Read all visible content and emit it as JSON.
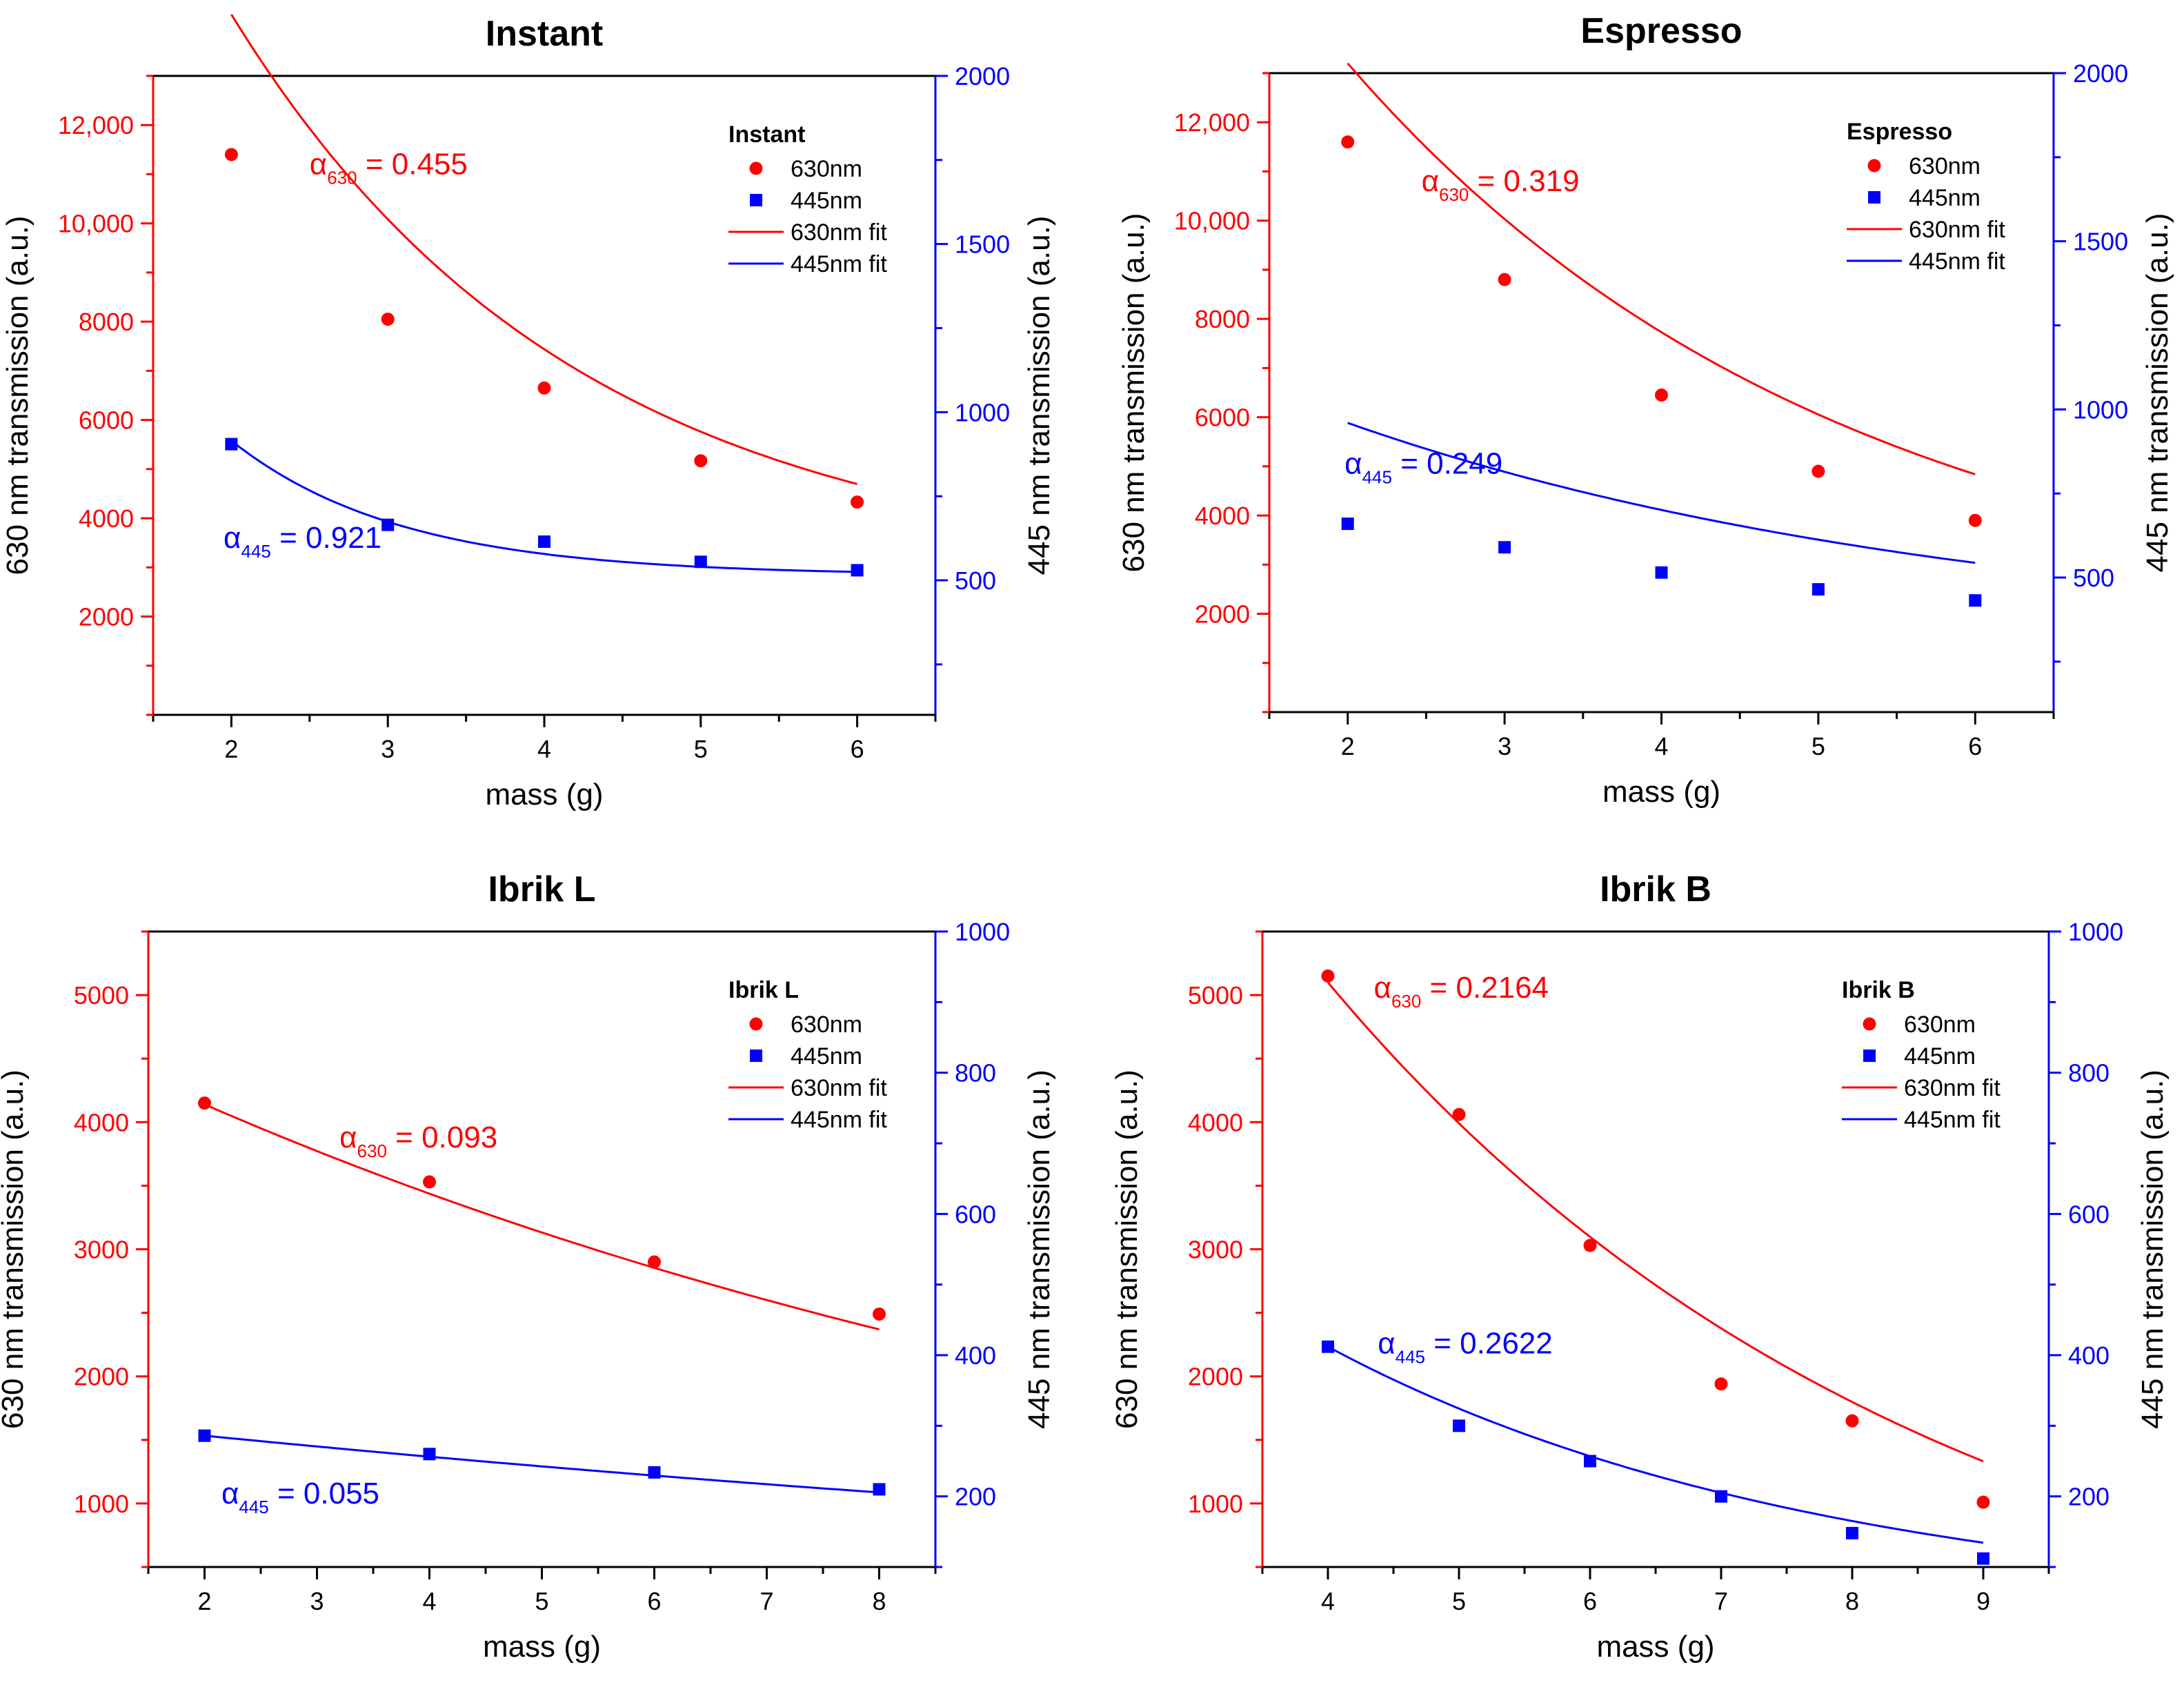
{
  "chart_data": [
    {
      "type": "scatter",
      "title": "Instant",
      "xlabel": "mass (g)",
      "ylabel_left": "630 nm transmission (a.u.)",
      "ylabel_right": "445 nm transmission (a.u.)",
      "xlim": [
        1.5,
        6.5
      ],
      "ylim_left": [
        0,
        13000
      ],
      "ylim_right": [
        100,
        2000
      ],
      "xticks": [
        2,
        3,
        4,
        5,
        6
      ],
      "xtick_labels": [
        "2",
        "3",
        "4",
        "5",
        "6"
      ],
      "yticks_left": [
        2000,
        4000,
        6000,
        8000,
        10000,
        12000
      ],
      "ytick_labels_left": [
        "2000",
        "4000",
        "6000",
        "8000",
        "10,000",
        "12,000"
      ],
      "yticks_right": [
        500,
        1000,
        1500,
        2000
      ],
      "ytick_labels_right": [
        "500",
        "1000",
        "1500",
        "2000"
      ],
      "legend": {
        "title": "Instant",
        "position": "top-right",
        "entries": [
          "630nm",
          "445nm",
          "630nm fit",
          "445nm fit"
        ]
      },
      "series": [
        {
          "name": "630nm",
          "axis": "left",
          "color": "#ff0000",
          "marker": "circle",
          "x": [
            2,
            3,
            4,
            5,
            6
          ],
          "y": [
            11400,
            8050,
            6650,
            5170,
            4330
          ]
        },
        {
          "name": "445nm",
          "axis": "right",
          "color": "#0000ff",
          "marker": "square",
          "x": [
            2,
            3,
            4,
            5,
            6
          ],
          "y": [
            905,
            665,
            615,
            555,
            530
          ]
        }
      ],
      "fits": [
        {
          "name": "630nm fit",
          "axis": "left",
          "color": "#ff0000",
          "x_range": [
            2,
            6
          ],
          "A": 11400,
          "alpha": 0.455,
          "C": 2850
        },
        {
          "name": "445nm fit",
          "axis": "right",
          "color": "#0000ff",
          "x_range": [
            2,
            6
          ],
          "A": 400,
          "alpha": 0.921,
          "C": 515
        }
      ],
      "annotations": [
        {
          "greek": "α",
          "sub": "630",
          "text": " = 0.455",
          "color": "#ff0000",
          "x": 2.5,
          "y": 11000,
          "axis": "left"
        },
        {
          "greek": "α",
          "sub": "445",
          "text": " = 0.921",
          "color": "#0000ff",
          "x": 1.95,
          "y": 3400,
          "axis": "left"
        }
      ]
    },
    {
      "type": "scatter",
      "title": "Espresso",
      "xlabel": "mass (g)",
      "ylabel_left": "630 nm transmission (a.u.)",
      "ylabel_right": "445 nm transmission (a.u.)",
      "xlim": [
        1.5,
        6.5
      ],
      "ylim_left": [
        0,
        13000
      ],
      "ylim_right": [
        100,
        2000
      ],
      "xticks": [
        2,
        3,
        4,
        5,
        6
      ],
      "xtick_labels": [
        "2",
        "3",
        "4",
        "5",
        "6"
      ],
      "yticks_left": [
        2000,
        4000,
        6000,
        8000,
        10000,
        12000
      ],
      "ytick_labels_left": [
        "2000",
        "4000",
        "6000",
        "8000",
        "10,000",
        "12,000"
      ],
      "yticks_right": [
        500,
        1000,
        1500,
        2000
      ],
      "ytick_labels_right": [
        "500",
        "1000",
        "1500",
        "2000"
      ],
      "legend": {
        "title": "Espresso",
        "position": "top-right",
        "entries": [
          "630nm",
          "445nm",
          "630nm fit",
          "445nm fit"
        ]
      },
      "series": [
        {
          "name": "630nm",
          "axis": "left",
          "color": "#ff0000",
          "marker": "circle",
          "x": [
            2,
            3,
            4,
            5,
            6
          ],
          "y": [
            11600,
            8800,
            6450,
            4900,
            3900
          ]
        },
        {
          "name": "445nm",
          "axis": "right",
          "color": "#0000ff",
          "marker": "square",
          "x": [
            2,
            3,
            4,
            5,
            6
          ],
          "y": [
            660,
            590,
            515,
            465,
            432
          ]
        }
      ],
      "fits": [
        {
          "name": "630nm fit",
          "axis": "left",
          "color": "#ff0000",
          "x_range": [
            2,
            6
          ],
          "A": 11600,
          "alpha": 0.319,
          "C": 1600
        },
        {
          "name": "445nm fit",
          "axis": "right",
          "color": "#0000ff",
          "x_range": [
            2,
            6
          ],
          "A": 660,
          "alpha": 0.249,
          "C": 300
        }
      ],
      "annotations": [
        {
          "greek": "α",
          "sub": "630",
          "text": " = 0.319",
          "color": "#ff0000",
          "x": 2.47,
          "y": 10600,
          "axis": "left"
        },
        {
          "greek": "α",
          "sub": "445",
          "text": " = 0.249",
          "color": "#0000ff",
          "x": 1.98,
          "y": 4850,
          "axis": "left"
        }
      ]
    },
    {
      "type": "scatter",
      "title": "Ibrik L",
      "xlabel": "mass (g)",
      "ylabel_left": "630 nm transmission (a.u.)",
      "ylabel_right": "445 nm transmission (a.u.)",
      "xlim": [
        1.5,
        8.5
      ],
      "ylim_left": [
        500,
        5500
      ],
      "ylim_right": [
        100,
        1000
      ],
      "xticks": [
        2,
        3,
        4,
        5,
        6,
        7,
        8
      ],
      "xtick_labels": [
        "2",
        "3",
        "4",
        "5",
        "6",
        "7",
        "8"
      ],
      "yticks_left": [
        1000,
        2000,
        3000,
        4000,
        5000
      ],
      "ytick_labels_left": [
        "1000",
        "2000",
        "3000",
        "4000",
        "5000"
      ],
      "yticks_right": [
        200,
        400,
        600,
        800,
        1000
      ],
      "ytick_labels_right": [
        "200",
        "400",
        "600",
        "800",
        "1000"
      ],
      "legend": {
        "title": "Ibrik L",
        "position": "top-right",
        "entries": [
          "630nm",
          "445nm",
          "630nm fit",
          "445nm fit"
        ]
      },
      "series": [
        {
          "name": "630nm",
          "axis": "left",
          "color": "#ff0000",
          "marker": "circle",
          "x": [
            2,
            4,
            6,
            8
          ],
          "y": [
            4150,
            3530,
            2900,
            2490
          ]
        },
        {
          "name": "445nm",
          "axis": "right",
          "color": "#0000ff",
          "marker": "square",
          "x": [
            2,
            4,
            6,
            8
          ],
          "y": [
            286,
            260,
            234,
            210
          ]
        }
      ],
      "fits": [
        {
          "name": "630nm fit",
          "axis": "left",
          "color": "#ff0000",
          "x_range": [
            2,
            8
          ],
          "A": 4140,
          "alpha": 0.093,
          "C": 0
        },
        {
          "name": "445nm fit",
          "axis": "right",
          "color": "#0000ff",
          "x_range": [
            2,
            8
          ],
          "A": 286,
          "alpha": 0.055,
          "C": 0
        }
      ],
      "annotations": [
        {
          "greek": "α",
          "sub": "630",
          "text": " = 0.093",
          "color": "#ff0000",
          "x": 3.2,
          "y": 3800,
          "axis": "left"
        },
        {
          "greek": "α",
          "sub": "445",
          "text": " = 0.055",
          "color": "#0000ff",
          "x": 2.15,
          "y": 1000,
          "axis": "left"
        }
      ]
    },
    {
      "type": "scatter",
      "title": "Ibrik B",
      "xlabel": "mass (g)",
      "ylabel_left": "630 nm transmission (a.u.)",
      "ylabel_right": "445 nm transmission (a.u.)",
      "xlim": [
        3.5,
        9.5
      ],
      "ylim_left": [
        500,
        5500
      ],
      "ylim_right": [
        100,
        1000
      ],
      "xticks": [
        4,
        5,
        6,
        7,
        8,
        9
      ],
      "xtick_labels": [
        "4",
        "5",
        "6",
        "7",
        "8",
        "9"
      ],
      "yticks_left": [
        1000,
        2000,
        3000,
        4000,
        5000
      ],
      "ytick_labels_left": [
        "1000",
        "2000",
        "3000",
        "4000",
        "5000"
      ],
      "yticks_right": [
        200,
        400,
        600,
        800,
        1000
      ],
      "ytick_labels_right": [
        "200",
        "400",
        "600",
        "800",
        "1000"
      ],
      "legend": {
        "title": "Ibrik B",
        "position": "top-right",
        "entries": [
          "630nm",
          "445nm",
          "630nm fit",
          "445nm fit"
        ]
      },
      "series": [
        {
          "name": "630nm",
          "axis": "left",
          "color": "#ff0000",
          "marker": "circle",
          "x": [
            4,
            5,
            6,
            7,
            8,
            9
          ],
          "y": [
            5150,
            4060,
            3030,
            1940,
            1650,
            1010
          ]
        },
        {
          "name": "445nm",
          "axis": "right",
          "color": "#0000ff",
          "marker": "square",
          "x": [
            4,
            5,
            6,
            7,
            8,
            9
          ],
          "y": [
            412,
            300,
            250,
            200,
            148,
            112
          ]
        }
      ],
      "fits": [
        {
          "name": "630nm fit",
          "axis": "left",
          "color": "#ff0000",
          "x_range": [
            4,
            9
          ],
          "A": 5700,
          "alpha": 0.2164,
          "C": -600
        },
        {
          "name": "445nm fit",
          "axis": "right",
          "color": "#0000ff",
          "x_range": [
            4,
            9
          ],
          "A": 380,
          "alpha": 0.2622,
          "C": 32
        }
      ],
      "annotations": [
        {
          "greek": "α",
          "sub": "630",
          "text": " = 0.2164",
          "color": "#ff0000",
          "x": 4.35,
          "y": 4980,
          "axis": "left"
        },
        {
          "greek": "α",
          "sub": "445",
          "text": " = 0.2622",
          "color": "#0000ff",
          "x": 4.38,
          "y": 2180,
          "axis": "left"
        }
      ]
    }
  ]
}
